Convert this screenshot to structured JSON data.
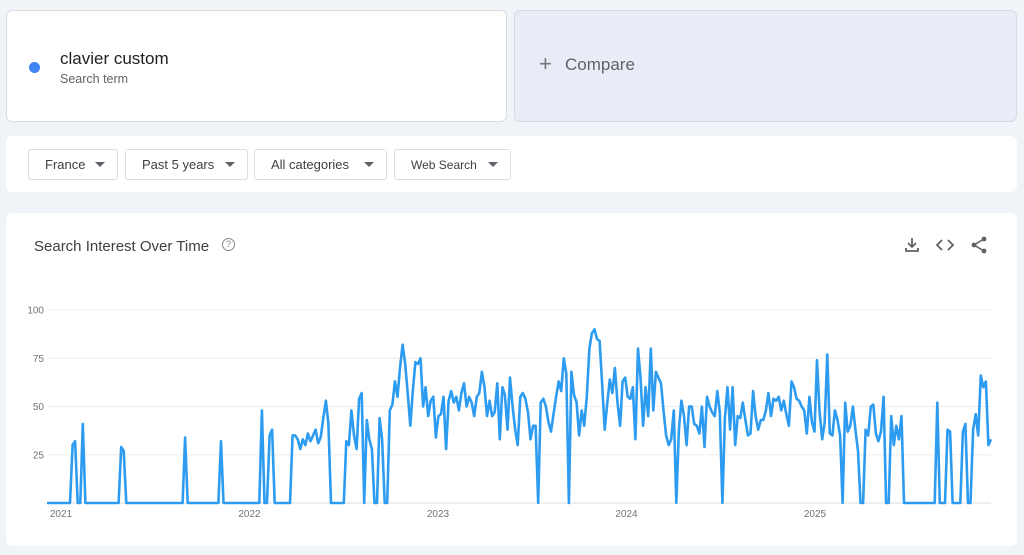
{
  "term": {
    "name": "clavier custom",
    "subtitle": "Search term",
    "color": "#4285f4"
  },
  "compare": {
    "plus": "+",
    "label": "Compare"
  },
  "filters": [
    {
      "label": "France"
    },
    {
      "label": "Past 5 years"
    },
    {
      "label": "All categories"
    },
    {
      "label": "Web Search"
    }
  ],
  "panel": {
    "title": "Search Interest Over Time",
    "help_icon": "?",
    "actions": [
      "download-icon",
      "embed-code-icon",
      "share-icon"
    ]
  },
  "chart_data": {
    "type": "line",
    "title": "",
    "xlabel": "",
    "ylabel": "",
    "ylim": [
      0,
      100
    ],
    "yticks": [
      25,
      50,
      75,
      100
    ],
    "x_ticks": [
      {
        "label": "2021",
        "year": 2021.0
      },
      {
        "label": "2022",
        "year": 2022.0
      },
      {
        "label": "2023",
        "year": 2023.0
      },
      {
        "label": "2024",
        "year": 2024.0
      },
      {
        "label": "2025",
        "year": 2025.0
      }
    ],
    "grid": true,
    "color": "#2d9cf0",
    "series": [
      {
        "values": [
          0,
          0,
          0,
          0,
          0,
          0,
          0,
          0,
          0,
          0,
          30,
          32,
          0,
          0,
          41,
          0,
          0,
          0,
          0,
          0,
          0,
          0,
          0,
          0,
          0,
          0,
          0,
          0,
          0,
          29,
          27,
          0,
          0,
          0,
          0,
          0,
          0,
          0,
          0,
          0,
          0,
          0,
          0,
          0,
          0,
          0,
          0,
          0,
          0,
          0,
          0,
          0,
          0,
          0,
          34,
          0,
          0,
          0,
          0,
          0,
          0,
          0,
          0,
          0,
          0,
          0,
          0,
          0,
          32,
          0,
          0,
          0,
          0,
          0,
          0,
          0,
          0,
          0,
          0,
          0,
          0,
          0,
          0,
          0,
          48,
          0,
          0,
          35,
          38,
          0,
          0,
          0,
          0,
          0,
          0,
          0,
          35,
          35,
          33,
          28,
          33,
          30,
          36,
          32,
          35,
          38,
          31,
          34,
          44,
          53,
          41,
          0,
          0,
          0,
          0,
          0,
          0,
          32,
          30,
          48,
          35,
          28,
          54,
          57,
          0,
          43,
          33,
          28,
          0,
          0,
          44,
          33,
          0,
          0,
          48,
          51,
          63,
          55,
          70,
          82,
          72,
          57,
          40,
          58,
          73,
          72,
          75,
          50,
          60,
          45,
          53,
          55,
          34,
          45,
          46,
          55,
          28,
          53,
          58,
          52,
          55,
          48,
          57,
          62,
          50,
          55,
          52,
          45,
          55,
          57,
          68,
          60,
          45,
          53,
          45,
          47,
          62,
          33,
          60,
          56,
          38,
          65,
          50,
          38,
          30,
          55,
          57,
          54,
          47,
          33,
          40,
          40,
          0,
          52,
          54,
          50,
          42,
          37,
          46,
          55,
          63,
          58,
          75,
          67,
          0,
          68,
          56,
          52,
          35,
          48,
          40,
          55,
          80,
          88,
          90,
          85,
          84,
          62,
          38,
          52,
          64,
          57,
          70,
          52,
          40,
          63,
          65,
          55,
          54,
          60,
          33,
          80,
          65,
          40,
          60,
          45,
          80,
          48,
          68,
          65,
          62,
          48,
          35,
          30,
          33,
          48,
          0,
          38,
          53,
          45,
          30,
          50,
          50,
          41,
          40,
          36,
          50,
          29,
          55,
          50,
          47,
          45,
          58,
          47,
          0,
          44,
          60,
          38,
          60,
          30,
          45,
          44,
          52,
          43,
          35,
          36,
          58,
          45,
          38,
          43,
          43,
          48,
          57,
          45,
          54,
          53,
          55,
          48,
          53,
          46,
          40,
          63,
          60,
          54,
          53,
          50,
          48,
          36,
          55,
          42,
          37,
          74,
          47,
          33,
          42,
          77,
          36,
          35,
          48,
          43,
          35,
          0,
          52,
          37,
          40,
          50,
          38,
          27,
          0,
          0,
          38,
          35,
          50,
          51,
          36,
          32,
          37,
          55,
          0,
          0,
          45,
          30,
          40,
          33,
          45,
          0,
          0,
          0,
          0,
          0,
          0,
          0,
          0,
          0,
          0,
          0,
          0,
          0,
          52,
          0,
          0,
          0,
          38,
          37,
          0,
          0,
          0,
          0,
          37,
          41,
          0,
          0,
          38,
          46,
          35,
          66,
          60,
          63,
          30,
          33
        ]
      }
    ]
  }
}
